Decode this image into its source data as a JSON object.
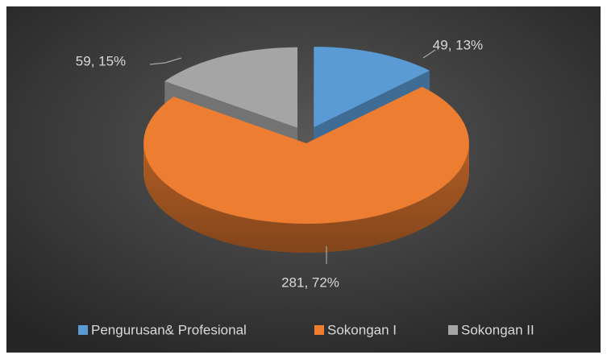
{
  "chart_data": {
    "type": "pie",
    "categories": [
      "Pengurusan& Profesional",
      "Sokongan I",
      "Sokongan II"
    ],
    "values": [
      49,
      281,
      59
    ],
    "value_labels": [
      "49, 13%",
      "281, 72%",
      "59, 15%"
    ],
    "colors": [
      "#5b9bd5",
      "#ed7d31",
      "#a5a5a5"
    ],
    "legend": "bottom"
  }
}
